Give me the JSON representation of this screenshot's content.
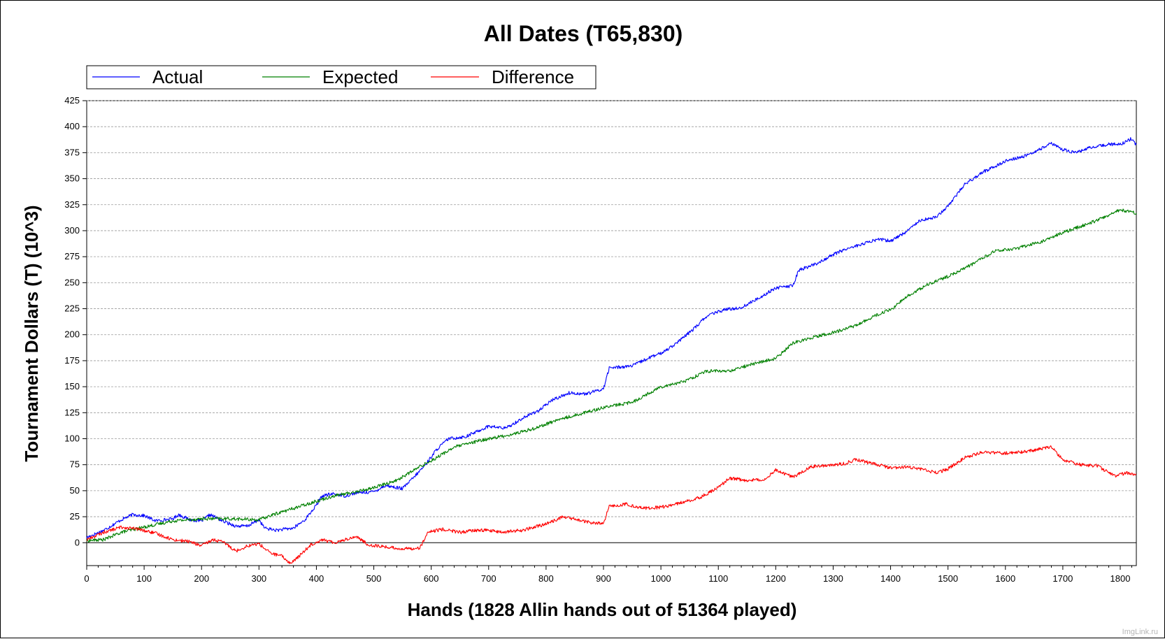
{
  "chart_data": {
    "type": "line",
    "title": "All Dates (T65,830)",
    "xlabel": "Hands (1828 Allin hands out of 51364 played)",
    "ylabel": "Tournament Dollars (T) (10^3)",
    "xlim": [
      0,
      1828
    ],
    "ylim": [
      -22,
      425
    ],
    "x_ticks": [
      0,
      100,
      200,
      300,
      400,
      500,
      600,
      700,
      800,
      900,
      1000,
      1100,
      1200,
      1300,
      1400,
      1500,
      1600,
      1700,
      1800
    ],
    "y_ticks": [
      0,
      25,
      50,
      75,
      100,
      125,
      150,
      175,
      200,
      225,
      250,
      275,
      300,
      325,
      350,
      375,
      400,
      425
    ],
    "grid": true,
    "legend_position": "top-left",
    "colors": {
      "Actual": "#0000ff",
      "Expected": "#008000",
      "Difference": "#ff0000"
    },
    "series": [
      {
        "name": "Actual",
        "points": [
          [
            0,
            5
          ],
          [
            30,
            12
          ],
          [
            60,
            22
          ],
          [
            80,
            27
          ],
          [
            100,
            26
          ],
          [
            120,
            21
          ],
          [
            150,
            23
          ],
          [
            160,
            27
          ],
          [
            180,
            22
          ],
          [
            200,
            21
          ],
          [
            215,
            27
          ],
          [
            240,
            20
          ],
          [
            260,
            16
          ],
          [
            280,
            16
          ],
          [
            300,
            22
          ],
          [
            310,
            14
          ],
          [
            330,
            12
          ],
          [
            360,
            14
          ],
          [
            380,
            22
          ],
          [
            400,
            36
          ],
          [
            410,
            45
          ],
          [
            430,
            47
          ],
          [
            450,
            45
          ],
          [
            470,
            48
          ],
          [
            500,
            49
          ],
          [
            520,
            55
          ],
          [
            550,
            52
          ],
          [
            570,
            63
          ],
          [
            590,
            75
          ],
          [
            610,
            90
          ],
          [
            630,
            100
          ],
          [
            660,
            102
          ],
          [
            680,
            107
          ],
          [
            700,
            112
          ],
          [
            730,
            110
          ],
          [
            760,
            120
          ],
          [
            790,
            128
          ],
          [
            810,
            137
          ],
          [
            840,
            144
          ],
          [
            870,
            143
          ],
          [
            900,
            148
          ],
          [
            910,
            168
          ],
          [
            950,
            170
          ],
          [
            980,
            178
          ],
          [
            1000,
            182
          ],
          [
            1030,
            193
          ],
          [
            1060,
            207
          ],
          [
            1080,
            218
          ],
          [
            1110,
            224
          ],
          [
            1140,
            226
          ],
          [
            1170,
            235
          ],
          [
            1200,
            245
          ],
          [
            1230,
            247
          ],
          [
            1240,
            262
          ],
          [
            1270,
            268
          ],
          [
            1300,
            277
          ],
          [
            1320,
            282
          ],
          [
            1350,
            287
          ],
          [
            1380,
            292
          ],
          [
            1400,
            290
          ],
          [
            1430,
            300
          ],
          [
            1450,
            310
          ],
          [
            1480,
            313
          ],
          [
            1500,
            324
          ],
          [
            1530,
            345
          ],
          [
            1560,
            356
          ],
          [
            1600,
            367
          ],
          [
            1630,
            371
          ],
          [
            1660,
            378
          ],
          [
            1680,
            384
          ],
          [
            1700,
            378
          ],
          [
            1720,
            375
          ],
          [
            1750,
            380
          ],
          [
            1780,
            383
          ],
          [
            1800,
            383
          ],
          [
            1818,
            388
          ],
          [
            1828,
            383
          ]
        ]
      },
      {
        "name": "Expected",
        "points": [
          [
            0,
            2
          ],
          [
            30,
            3
          ],
          [
            60,
            10
          ],
          [
            100,
            15
          ],
          [
            150,
            21
          ],
          [
            200,
            23
          ],
          [
            250,
            23
          ],
          [
            300,
            22
          ],
          [
            330,
            28
          ],
          [
            360,
            33
          ],
          [
            400,
            40
          ],
          [
            430,
            45
          ],
          [
            470,
            49
          ],
          [
            500,
            53
          ],
          [
            540,
            60
          ],
          [
            580,
            73
          ],
          [
            610,
            82
          ],
          [
            640,
            92
          ],
          [
            670,
            96
          ],
          [
            700,
            100
          ],
          [
            740,
            104
          ],
          [
            780,
            110
          ],
          [
            820,
            118
          ],
          [
            860,
            124
          ],
          [
            900,
            130
          ],
          [
            950,
            135
          ],
          [
            1000,
            150
          ],
          [
            1040,
            155
          ],
          [
            1080,
            165
          ],
          [
            1120,
            165
          ],
          [
            1160,
            172
          ],
          [
            1200,
            177
          ],
          [
            1230,
            192
          ],
          [
            1260,
            197
          ],
          [
            1300,
            202
          ],
          [
            1340,
            209
          ],
          [
            1380,
            220
          ],
          [
            1400,
            224
          ],
          [
            1430,
            237
          ],
          [
            1460,
            247
          ],
          [
            1500,
            256
          ],
          [
            1540,
            267
          ],
          [
            1580,
            280
          ],
          [
            1620,
            283
          ],
          [
            1660,
            289
          ],
          [
            1700,
            298
          ],
          [
            1730,
            304
          ],
          [
            1760,
            310
          ],
          [
            1800,
            320
          ],
          [
            1828,
            317
          ]
        ]
      },
      {
        "name": "Difference",
        "points": [
          [
            0,
            3
          ],
          [
            30,
            10
          ],
          [
            60,
            15
          ],
          [
            90,
            13
          ],
          [
            120,
            9
          ],
          [
            150,
            3
          ],
          [
            180,
            1
          ],
          [
            200,
            -3
          ],
          [
            220,
            3
          ],
          [
            240,
            0
          ],
          [
            260,
            -8
          ],
          [
            280,
            -3
          ],
          [
            300,
            -1
          ],
          [
            320,
            -10
          ],
          [
            340,
            -13
          ],
          [
            355,
            -20
          ],
          [
            370,
            -13
          ],
          [
            390,
            -2
          ],
          [
            410,
            3
          ],
          [
            430,
            0
          ],
          [
            450,
            3
          ],
          [
            470,
            6
          ],
          [
            490,
            -2
          ],
          [
            520,
            -4
          ],
          [
            550,
            -6
          ],
          [
            580,
            -5
          ],
          [
            595,
            10
          ],
          [
            620,
            13
          ],
          [
            650,
            10
          ],
          [
            680,
            12
          ],
          [
            700,
            12
          ],
          [
            720,
            10
          ],
          [
            760,
            12
          ],
          [
            800,
            18
          ],
          [
            830,
            25
          ],
          [
            870,
            20
          ],
          [
            900,
            18
          ],
          [
            910,
            35
          ],
          [
            940,
            37
          ],
          [
            970,
            33
          ],
          [
            1000,
            34
          ],
          [
            1040,
            39
          ],
          [
            1070,
            44
          ],
          [
            1100,
            53
          ],
          [
            1120,
            62
          ],
          [
            1150,
            60
          ],
          [
            1180,
            61
          ],
          [
            1200,
            70
          ],
          [
            1230,
            63
          ],
          [
            1260,
            73
          ],
          [
            1300,
            75
          ],
          [
            1320,
            76
          ],
          [
            1340,
            80
          ],
          [
            1370,
            76
          ],
          [
            1400,
            72
          ],
          [
            1430,
            73
          ],
          [
            1460,
            70
          ],
          [
            1480,
            67
          ],
          [
            1500,
            71
          ],
          [
            1530,
            82
          ],
          [
            1560,
            87
          ],
          [
            1600,
            86
          ],
          [
            1640,
            88
          ],
          [
            1680,
            92
          ],
          [
            1700,
            80
          ],
          [
            1730,
            75
          ],
          [
            1760,
            74
          ],
          [
            1790,
            64
          ],
          [
            1810,
            67
          ],
          [
            1828,
            66
          ]
        ]
      }
    ]
  },
  "watermark": "ImgLink.ru"
}
